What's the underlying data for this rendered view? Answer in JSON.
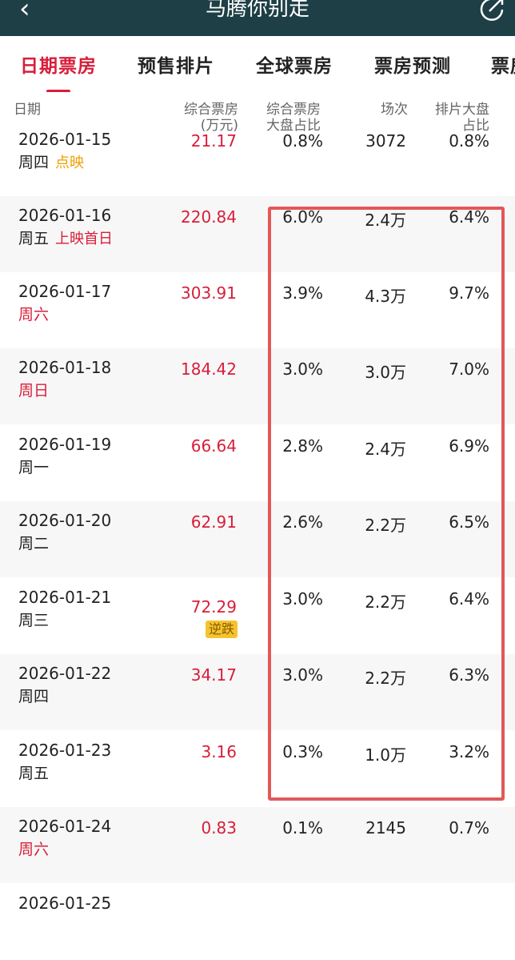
{
  "header": {
    "title": "马腾你别走",
    "back_icon": "chevron-left-icon",
    "share_icon": "share-icon"
  },
  "tabs": [
    {
      "label": "日期票房",
      "active": true
    },
    {
      "label": "预售排片",
      "active": false
    },
    {
      "label": "全球票房",
      "active": false
    },
    {
      "label": "票房预测",
      "active": false
    },
    {
      "label": "票房",
      "active": false
    }
  ],
  "columns": {
    "date": "日期",
    "box_office": [
      "综合票房",
      "(万元)"
    ],
    "box_share": [
      "综合票房",
      "大盘占比"
    ],
    "shows": "场次",
    "seat_share": [
      "排片大盘",
      "占比"
    ]
  },
  "rows": [
    {
      "date": "2026-01-15",
      "weekday": "周四",
      "weekend": false,
      "tag": "点映",
      "tag_color": "orange",
      "box": "21.17",
      "box_share": "0.8%",
      "shows": "3072",
      "seat": "0.8%"
    },
    {
      "date": "2026-01-16",
      "weekday": "周五",
      "weekend": false,
      "tag": "上映首日",
      "tag_color": "red",
      "box": "220.84",
      "box_share": "6.0%",
      "shows": "2.4万",
      "seat": "6.4%"
    },
    {
      "date": "2026-01-17",
      "weekday": "周六",
      "weekend": true,
      "tag": "",
      "box": "303.91",
      "box_share": "3.9%",
      "shows": "4.3万",
      "seat": "9.7%"
    },
    {
      "date": "2026-01-18",
      "weekday": "周日",
      "weekend": true,
      "tag": "",
      "box": "184.42",
      "box_share": "3.0%",
      "shows": "3.0万",
      "seat": "7.0%"
    },
    {
      "date": "2026-01-19",
      "weekday": "周一",
      "weekend": false,
      "tag": "",
      "box": "66.64",
      "box_share": "2.8%",
      "shows": "2.4万",
      "seat": "6.9%"
    },
    {
      "date": "2026-01-20",
      "weekday": "周二",
      "weekend": false,
      "tag": "",
      "box": "62.91",
      "box_share": "2.6%",
      "shows": "2.2万",
      "seat": "6.5%"
    },
    {
      "date": "2026-01-21",
      "weekday": "周三",
      "weekend": false,
      "tag": "",
      "box": "72.29",
      "badge": "逆跌",
      "box_share": "3.0%",
      "shows": "2.2万",
      "seat": "6.4%"
    },
    {
      "date": "2026-01-22",
      "weekday": "周四",
      "weekend": false,
      "tag": "",
      "box": "34.17",
      "box_share": "3.0%",
      "shows": "2.2万",
      "seat": "6.3%"
    },
    {
      "date": "2026-01-23",
      "weekday": "周五",
      "weekend": false,
      "tag": "",
      "box": "3.16",
      "box_share": "0.3%",
      "shows": "1.0万",
      "seat": "3.2%"
    },
    {
      "date": "2026-01-24",
      "weekday": "周六",
      "weekend": true,
      "tag": "",
      "box": "0.83",
      "box_share": "0.1%",
      "shows": "2145",
      "seat": "0.7%"
    },
    {
      "date": "2026-01-25",
      "weekday": "",
      "weekend": true,
      "tag": "",
      "box": "",
      "box_share": "",
      "shows": "",
      "seat": ""
    }
  ],
  "colors": {
    "header_bg": "#1e3f46",
    "accent": "#d81e3a",
    "tag_orange": "#f0a000",
    "highlight": "#e25858"
  }
}
